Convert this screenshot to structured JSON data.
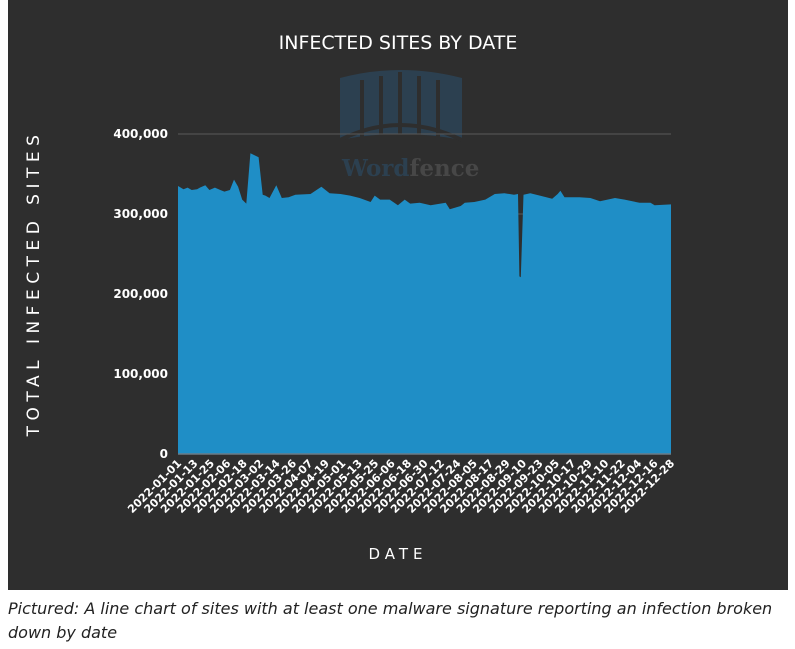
{
  "chart_data": {
    "type": "area",
    "title": "INFECTED SITES BY DATE",
    "xlabel": "DATE",
    "ylabel": "TOTAL INFECTED SITES",
    "ylim": [
      0,
      400000
    ],
    "yticks": [
      0,
      100000,
      200000,
      300000,
      400000
    ],
    "ytick_labels": [
      "0",
      "100,000",
      "200,000",
      "300,000",
      "400,000"
    ],
    "grid": "horizontal",
    "color": "#1f8ec6",
    "xtick_labels": [
      "2022-01-01",
      "2022-01-13",
      "2022-01-25",
      "2022-02-06",
      "2022-02-18",
      "2022-03-02",
      "2022-03-14",
      "2022-03-26",
      "2022-04-07",
      "2022-04-19",
      "2022-05-01",
      "2022-05-13",
      "2022-05-25",
      "2022-06-06",
      "2022-06-18",
      "2022-06-30",
      "2022-07-12",
      "2022-07-24",
      "2022-08-05",
      "2022-08-17",
      "2022-08-29",
      "2022-09-10",
      "2022-09-23",
      "2022-10-05",
      "2022-10-17",
      "2022-10-29",
      "2022-11-10",
      "2022-11-22",
      "2022-12-04",
      "2022-12-16",
      "2022-12-28"
    ],
    "x_day_of_year_start": 0,
    "x_day_of_year_end": 361,
    "series": [
      {
        "name": "Total infected sites",
        "day_offset": [
          0,
          4,
          7,
          10,
          14,
          16,
          20,
          23,
          27,
          31,
          34,
          38,
          41,
          44,
          47,
          50,
          53,
          59,
          62,
          64,
          67,
          72,
          76,
          81,
          86,
          97,
          105,
          111,
          119,
          126,
          133,
          141,
          144,
          148,
          155,
          161,
          166,
          170,
          177,
          185,
          196,
          199,
          207,
          210,
          217,
          225,
          232,
          239,
          246,
          249,
          250,
          251,
          253,
          258,
          265,
          274,
          278,
          280,
          283,
          294,
          302,
          309,
          320,
          327,
          338,
          346,
          349,
          361
        ],
        "values": [
          335000,
          331000,
          333000,
          330000,
          331000,
          333000,
          336000,
          330000,
          333000,
          330000,
          328000,
          330000,
          343000,
          334000,
          318000,
          313000,
          376000,
          371000,
          324000,
          323000,
          320000,
          336000,
          320000,
          321000,
          324000,
          325000,
          334000,
          326000,
          325000,
          323000,
          320000,
          315000,
          323000,
          318000,
          318000,
          311000,
          318000,
          313000,
          314000,
          311000,
          314000,
          306000,
          310000,
          314000,
          315000,
          318000,
          325000,
          326000,
          324000,
          325000,
          222000,
          221000,
          324000,
          326000,
          323000,
          319000,
          325000,
          329000,
          321000,
          321000,
          320000,
          316000,
          320000,
          318000,
          314000,
          314000,
          311000,
          312000
        ]
      }
    ]
  },
  "watermark": "Wordfence",
  "caption": "Pictured: A line chart of sites with at least one malware signature reporting an infection broken down by date"
}
